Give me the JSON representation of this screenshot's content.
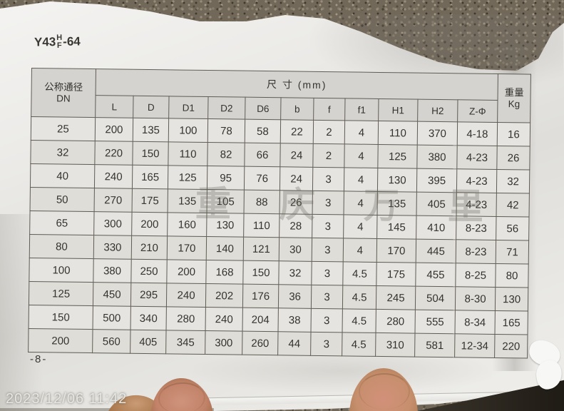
{
  "photo": {
    "title": {
      "prefix": "Y43",
      "numerator": "H",
      "denominator": "F",
      "suffix": "-64"
    },
    "watermark": "重庆万里",
    "page_number": "-8-",
    "timestamp": "2023/12/06 11:42"
  },
  "table": {
    "dn_header_line1": "公称通径",
    "dn_header_line2": "DN",
    "size_header": "尺 寸 (mm)",
    "weight_header_line1": "重量",
    "weight_header_line2": "Kg",
    "columns": [
      "L",
      "D",
      "D1",
      "D2",
      "D6",
      "b",
      "f",
      "f1",
      "H1",
      "H2",
      "Z-Φ"
    ],
    "rows": [
      [
        "25",
        "200",
        "135",
        "100",
        "78",
        "58",
        "22",
        "2",
        "4",
        "110",
        "370",
        "4-18",
        "16"
      ],
      [
        "32",
        "220",
        "150",
        "110",
        "82",
        "66",
        "24",
        "2",
        "4",
        "125",
        "380",
        "4-23",
        "26"
      ],
      [
        "40",
        "240",
        "165",
        "125",
        "95",
        "76",
        "24",
        "3",
        "4",
        "130",
        "395",
        "4-23",
        "32"
      ],
      [
        "50",
        "270",
        "175",
        "135",
        "105",
        "88",
        "26",
        "3",
        "4",
        "135",
        "405",
        "4-23",
        "42"
      ],
      [
        "65",
        "300",
        "200",
        "160",
        "130",
        "110",
        "28",
        "3",
        "4",
        "145",
        "410",
        "8-23",
        "56"
      ],
      [
        "80",
        "330",
        "210",
        "170",
        "140",
        "121",
        "30",
        "3",
        "4",
        "170",
        "445",
        "8-23",
        "71"
      ],
      [
        "100",
        "380",
        "250",
        "200",
        "168",
        "150",
        "32",
        "3",
        "4.5",
        "175",
        "455",
        "8-25",
        "80"
      ],
      [
        "125",
        "450",
        "295",
        "240",
        "202",
        "176",
        "36",
        "3",
        "4.5",
        "245",
        "504",
        "8-30",
        "130"
      ],
      [
        "150",
        "500",
        "340",
        "280",
        "240",
        "204",
        "38",
        "3",
        "4.5",
        "280",
        "555",
        "8-34",
        "165"
      ],
      [
        "200",
        "560",
        "405",
        "345",
        "300",
        "260",
        "44",
        "3",
        "4.5",
        "310",
        "581",
        "12-34",
        "220"
      ]
    ]
  },
  "colors": {
    "carpet": "#71685a",
    "paper": "#e8e7e3",
    "table_line": "#5f5c54",
    "header_fill": "#d4d3cf",
    "cell_fill": "#e5e4e0",
    "text": "#34322d",
    "watermark": "rgba(104,99,89,0.30)",
    "timestamp_text": "#e6e6e3",
    "finger_skin": "#c78f6e",
    "shadow_corner": "#1f1b15"
  }
}
